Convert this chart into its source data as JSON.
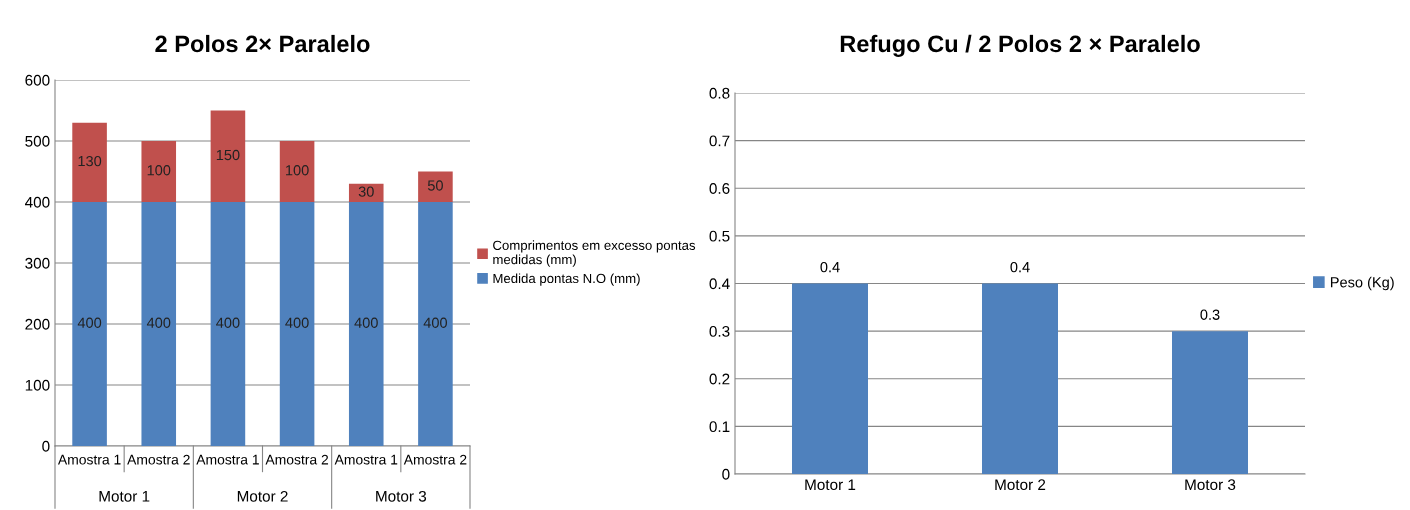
{
  "chart_data": [
    {
      "type": "bar",
      "title": "2 Polos 2× Paralelo",
      "categories": [
        "Amostra 1",
        "Amostra 2",
        "Amostra 1",
        "Amostra 2",
        "Amostra 1",
        "Amostra 2"
      ],
      "annotations": [
        "Motor 1",
        "Motor 2",
        "Motor 3"
      ],
      "stacked": true,
      "series": [
        {
          "name": "Medida pontas N.O (mm)",
          "color": "#4f81bd",
          "values": [
            400,
            400,
            400,
            400,
            400,
            400
          ]
        },
        {
          "name": "Comprimentos em excesso pontas medidas (mm)",
          "color": "#c0504d",
          "values": [
            130,
            100,
            150,
            100,
            30,
            50
          ]
        }
      ],
      "ylim": [
        0,
        600
      ],
      "yticks": [
        0,
        100,
        200,
        300,
        400,
        500,
        600
      ],
      "grid": "y",
      "legend": "right",
      "data_labels": true
    },
    {
      "type": "bar",
      "title": "Refugo Cu / 2 Polos 2 × Paralelo",
      "categories": [
        "Motor 1",
        "Motor 2",
        "Motor 3"
      ],
      "series": [
        {
          "name": "Peso (Kg)",
          "color": "#4f81bd",
          "values": [
            0.4,
            0.4,
            0.3
          ]
        }
      ],
      "ylim": [
        0,
        0.8
      ],
      "yticks": [
        0,
        0.1,
        0.2,
        0.3,
        0.4,
        0.5,
        0.6,
        0.7,
        0.8
      ],
      "grid": "y",
      "legend": "right",
      "data_labels": true
    }
  ]
}
